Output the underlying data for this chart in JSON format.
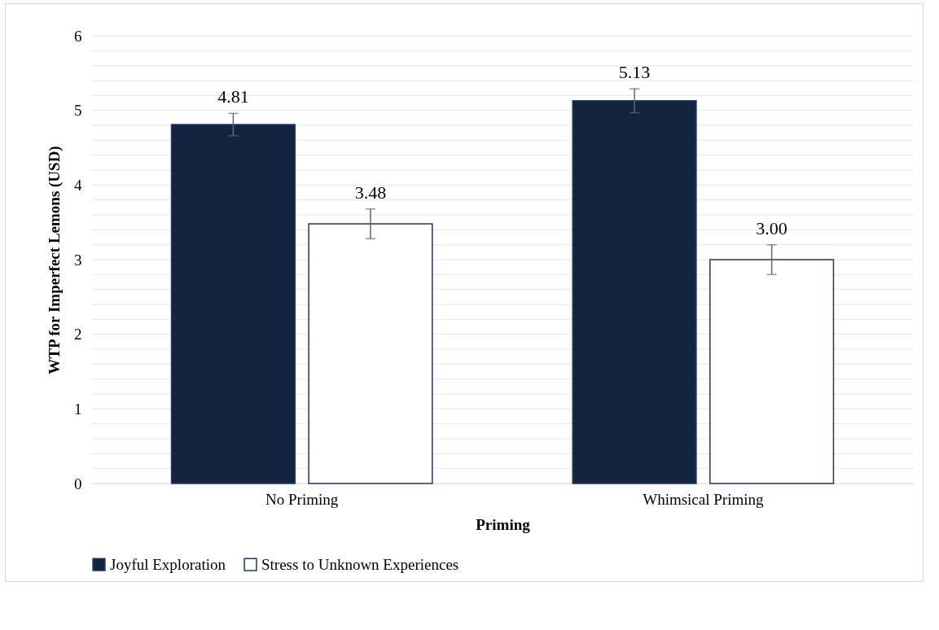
{
  "chart_data": {
    "type": "bar",
    "xlabel": "Priming",
    "ylabel": "WTP for Imperfect Lemons (USD)",
    "categories": [
      "No Priming",
      "Whimsical Priming"
    ],
    "series": [
      {
        "name": "Joyful Exploration",
        "color": "#12243f",
        "values": [
          4.81,
          5.13
        ],
        "errors": [
          0.15,
          0.16
        ],
        "value_labels": [
          "4.81",
          "5.13"
        ]
      },
      {
        "name": "Stress to Unknown Experiences",
        "color": "#ffffff",
        "values": [
          3.48,
          3.0
        ],
        "errors": [
          0.2,
          0.2
        ],
        "value_labels": [
          "3.48",
          "3.00"
        ]
      }
    ],
    "ylim": [
      0,
      6
    ],
    "yticks": [
      0,
      {
        "value": 0.2,
        "label": null
      },
      {
        "value": 0.4,
        "label": null
      },
      {
        "value": 0.6,
        "label": null
      },
      {
        "value": 0.8,
        "label": null
      },
      1,
      {
        "value": 1.2,
        "label": null
      },
      {
        "value": 1.4,
        "label": null
      },
      {
        "value": 1.6,
        "label": null
      },
      {
        "value": 1.8,
        "label": null
      },
      2,
      {
        "value": 2.2,
        "label": null
      },
      {
        "value": 2.4,
        "label": null
      },
      {
        "value": 2.6,
        "label": null
      },
      {
        "value": 2.8,
        "label": null
      },
      3,
      {
        "value": 3.2,
        "label": null
      },
      {
        "value": 3.4,
        "label": null
      },
      {
        "value": 3.6,
        "label": null
      },
      {
        "value": 3.8,
        "label": null
      },
      4,
      {
        "value": 4.2,
        "label": null
      },
      {
        "value": 4.4,
        "label": null
      },
      {
        "value": 4.6,
        "label": null
      },
      {
        "value": 4.8,
        "label": null
      },
      5,
      {
        "value": 5.2,
        "label": null
      },
      {
        "value": 5.4,
        "label": null
      },
      {
        "value": 5.6,
        "label": null
      },
      {
        "value": 5.8,
        "label": null
      },
      6
    ],
    "grid": "y",
    "legend": "bottom"
  }
}
